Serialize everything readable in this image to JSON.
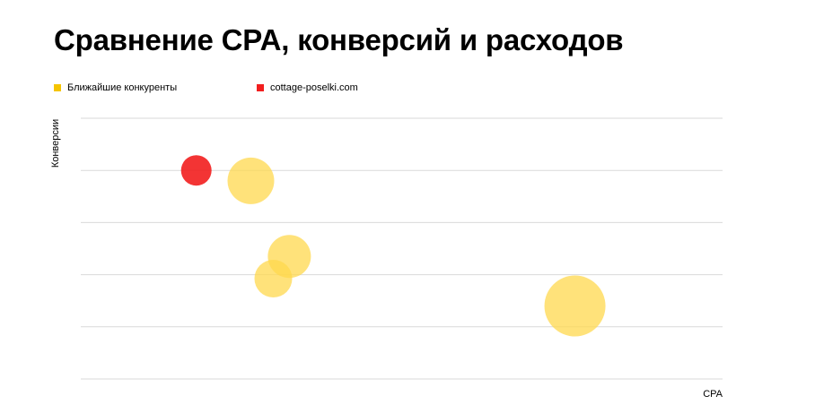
{
  "chart_data": {
    "type": "bubble",
    "title": "Сравнение CPA, конверсий и расходов",
    "xlabel": "CPA",
    "ylabel": "Конверсии",
    "xlim": [
      0,
      100
    ],
    "ylim": [
      0,
      100
    ],
    "grid": true,
    "legend_position": "top-left",
    "series": [
      {
        "name": "Ближайшие конкуренты",
        "color": "#FFD84D",
        "points": [
          {
            "x": 26.5,
            "y": 76,
            "size": 52
          },
          {
            "x": 32.5,
            "y": 47,
            "size": 48
          },
          {
            "x": 30.0,
            "y": 38.5,
            "size": 42
          },
          {
            "x": 77.0,
            "y": 28,
            "size": 68
          }
        ]
      },
      {
        "name": "cottage-poselki.com",
        "color": "#F21E1E",
        "points": [
          {
            "x": 18,
            "y": 80,
            "size": 34
          }
        ]
      }
    ]
  }
}
